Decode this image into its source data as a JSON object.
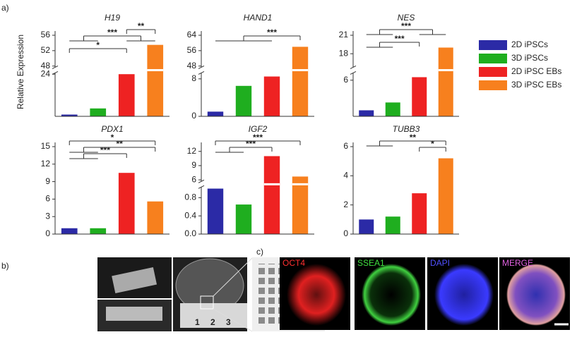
{
  "panel_labels": [
    "a)",
    "b)",
    "c)"
  ],
  "ylabel": "Relative Expression",
  "legend": [
    {
      "name": "2D iPSCs",
      "color": "#2b2aa6"
    },
    {
      "name": "3D iPSCs",
      "color": "#1fae1f"
    },
    {
      "name": "2D iPSC EBs",
      "color": "#ee2222"
    },
    {
      "name": "3D iPSC EBs",
      "color": "#f7801e"
    }
  ],
  "chart_data": [
    {
      "type": "bar",
      "title": "H19",
      "values": [
        1,
        4.5,
        24,
        53.5
      ],
      "ybreak": {
        "lower": [
          0,
          24
        ],
        "upper": [
          48,
          56
        ]
      },
      "yticks": [
        24,
        48,
        52,
        56
      ],
      "annotations": [
        "**",
        "***",
        "*"
      ]
    },
    {
      "type": "bar",
      "title": "HAND1",
      "values": [
        1,
        6.5,
        8.5,
        58
      ],
      "ybreak": {
        "lower": [
          0,
          9
        ],
        "upper": [
          48,
          64
        ]
      },
      "yticks": [
        0,
        8,
        48,
        56,
        64
      ],
      "annotations": [
        "***"
      ]
    },
    {
      "type": "bar",
      "title": "NES",
      "values": [
        1,
        2.3,
        6.5,
        19
      ],
      "ybreak": {
        "lower": [
          0,
          7
        ],
        "upper": [
          16,
          21
        ]
      },
      "yticks": [
        6,
        18,
        21
      ],
      "annotations": [
        "***",
        "***"
      ]
    },
    {
      "type": "bar",
      "title": "PDX1",
      "values": [
        1,
        1,
        10.5,
        5.6
      ],
      "ylim": [
        0,
        15
      ],
      "yticks": [
        0,
        3,
        6,
        9,
        12,
        15
      ],
      "annotations": [
        "*",
        "**",
        "***"
      ]
    },
    {
      "type": "bar",
      "title": "IGF2",
      "values": [
        1.0,
        0.65,
        11,
        6.7
      ],
      "ybreak": {
        "lower": [
          0,
          1.0
        ],
        "upper": [
          6,
          13
        ]
      },
      "yticks": [
        {
          "value": 0,
          "label": "0.0"
        },
        {
          "value": 0.4,
          "label": "0.4"
        },
        {
          "value": 0.8,
          "label": "0.8"
        },
        6,
        9,
        12
      ],
      "annotations": [
        "***",
        "***"
      ]
    },
    {
      "type": "bar",
      "title": "TUBB3",
      "values": [
        1,
        1.2,
        2.8,
        5.2
      ],
      "ylim": [
        0,
        6
      ],
      "yticks": [
        0,
        2,
        4,
        6
      ],
      "annotations": [
        "**",
        "*"
      ]
    }
  ],
  "images": {
    "ruler": [
      "1",
      "2",
      "3"
    ],
    "channels": [
      "OCT4",
      "SSEA1",
      "DAPI",
      "MERGE"
    ]
  }
}
